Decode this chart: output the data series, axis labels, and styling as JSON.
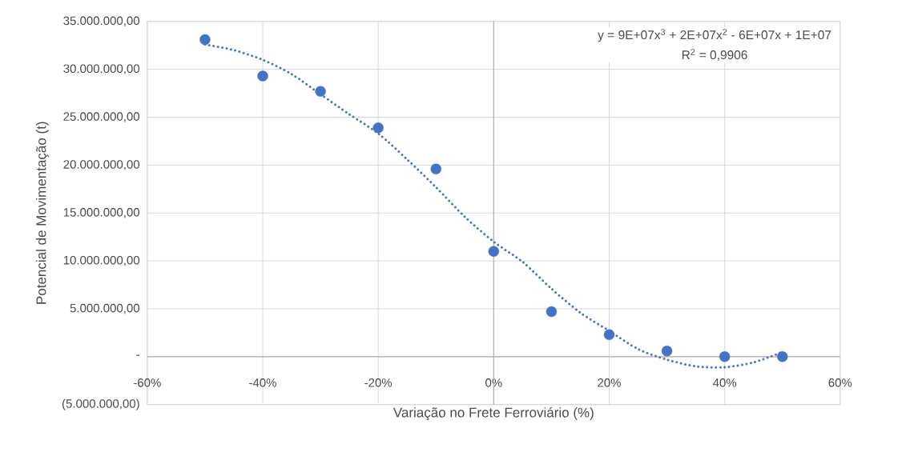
{
  "chart_data": {
    "type": "scatter",
    "xlabel": "Variação no Frete Ferroviário (%)",
    "ylabel": "Potencial de Movimentação (t)",
    "annotations": [
      "y = 9E+07x$^{3}$ + 2E+07x$^{2}$ - 6E+07x + 1E+07",
      "R$^{2}$ = 0,9906"
    ],
    "x": [
      -50,
      -40,
      -30,
      -20,
      -10,
      0,
      10,
      20,
      30,
      40,
      50
    ],
    "series": [
      {
        "color": "#4472c4",
        "marker": "circle",
        "values": [
          33100000,
          29300000,
          27700000,
          23900000,
          19600000,
          11000000,
          4700000,
          2300000,
          600000,
          0,
          0
        ]
      },
      {
        "type": "line",
        "color": "#4472c4",
        "marker": "none",
        "line_style": "dotted",
        "x": [
          -50,
          -45,
          -40,
          -35,
          -30,
          -25,
          -20,
          -15,
          -10,
          -5,
          0,
          5,
          10,
          15,
          20,
          25,
          30,
          35,
          40,
          45,
          50
        ],
        "values": [
          32600000,
          32000000,
          31000000,
          29500000,
          27400000,
          25300000,
          23300000,
          20600000,
          17700000,
          14600000,
          12000000,
          9900000,
          7100000,
          4600000,
          2700000,
          800000,
          -300000,
          -1000000,
          -1100000,
          -600000,
          500000
        ]
      }
    ],
    "xlim": [
      -60,
      60
    ],
    "xticks": [
      {
        "value": -60,
        "label": "-60%"
      },
      {
        "value": -40,
        "label": "-40%"
      },
      {
        "value": -20,
        "label": "-20%"
      },
      {
        "value": 0,
        "label": "0%"
      },
      {
        "value": 20,
        "label": "20%"
      },
      {
        "value": 40,
        "label": "40%"
      },
      {
        "value": 60,
        "label": "60%"
      }
    ],
    "ylim": [
      -5000000,
      35000000
    ],
    "yticks": [
      {
        "value": -5000000,
        "label": "(5.000.000,00)"
      },
      {
        "value": 0,
        "label": "-"
      },
      {
        "value": 5000000,
        "label": "5.000.000,00"
      },
      {
        "value": 10000000,
        "label": "10.000.000,00"
      },
      {
        "value": 15000000,
        "label": "15.000.000,00"
      },
      {
        "value": 20000000,
        "label": "20.000.000,00"
      },
      {
        "value": 25000000,
        "label": "25.000.000,00"
      },
      {
        "value": 30000000,
        "label": "30.000.000,00"
      },
      {
        "value": 35000000,
        "label": "35.000.000,00"
      }
    ],
    "grid": true,
    "legend": false
  }
}
